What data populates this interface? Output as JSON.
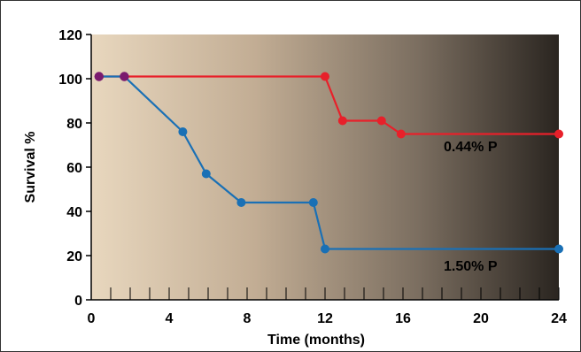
{
  "chart_data": {
    "type": "line",
    "title": "",
    "xlabel": "Time (months)",
    "ylabel": "Survival %",
    "xlim": [
      0,
      24
    ],
    "ylim": [
      0,
      120
    ],
    "x_ticks": [
      0,
      4,
      8,
      12,
      16,
      20,
      24
    ],
    "y_ticks": [
      0,
      20,
      40,
      60,
      80,
      100,
      120
    ],
    "x_minor_step": 1,
    "grid": false,
    "background": "gradient: light tan (left) to dark brown-black (right)",
    "series": [
      {
        "name": "0.44% P",
        "color": "#e8202a",
        "step": true,
        "points": [
          {
            "x": 0.4,
            "y": 101
          },
          {
            "x": 1.7,
            "y": 101
          },
          {
            "x": 12.0,
            "y": 101
          },
          {
            "x": 12.9,
            "y": 81
          },
          {
            "x": 14.9,
            "y": 81
          },
          {
            "x": 15.9,
            "y": 75
          },
          {
            "x": 24.0,
            "y": 75
          }
        ]
      },
      {
        "name": "1.50% P",
        "color": "#1a70b5",
        "step": false,
        "points": [
          {
            "x": 0.4,
            "y": 101
          },
          {
            "x": 1.7,
            "y": 101
          },
          {
            "x": 4.7,
            "y": 76
          },
          {
            "x": 5.9,
            "y": 57
          },
          {
            "x": 7.7,
            "y": 44
          },
          {
            "x": 11.4,
            "y": 44
          },
          {
            "x": 12.0,
            "y": 23
          },
          {
            "x": 24.0,
            "y": 23
          }
        ]
      }
    ],
    "shared_start_color": "#7a1a6e",
    "shared_start_points": [
      {
        "x": 0.4,
        "y": 101
      },
      {
        "x": 1.7,
        "y": 101
      }
    ],
    "annotations": [
      {
        "text": "0.44% P",
        "series": 0
      },
      {
        "text": "1.50% P",
        "series": 1
      }
    ]
  }
}
